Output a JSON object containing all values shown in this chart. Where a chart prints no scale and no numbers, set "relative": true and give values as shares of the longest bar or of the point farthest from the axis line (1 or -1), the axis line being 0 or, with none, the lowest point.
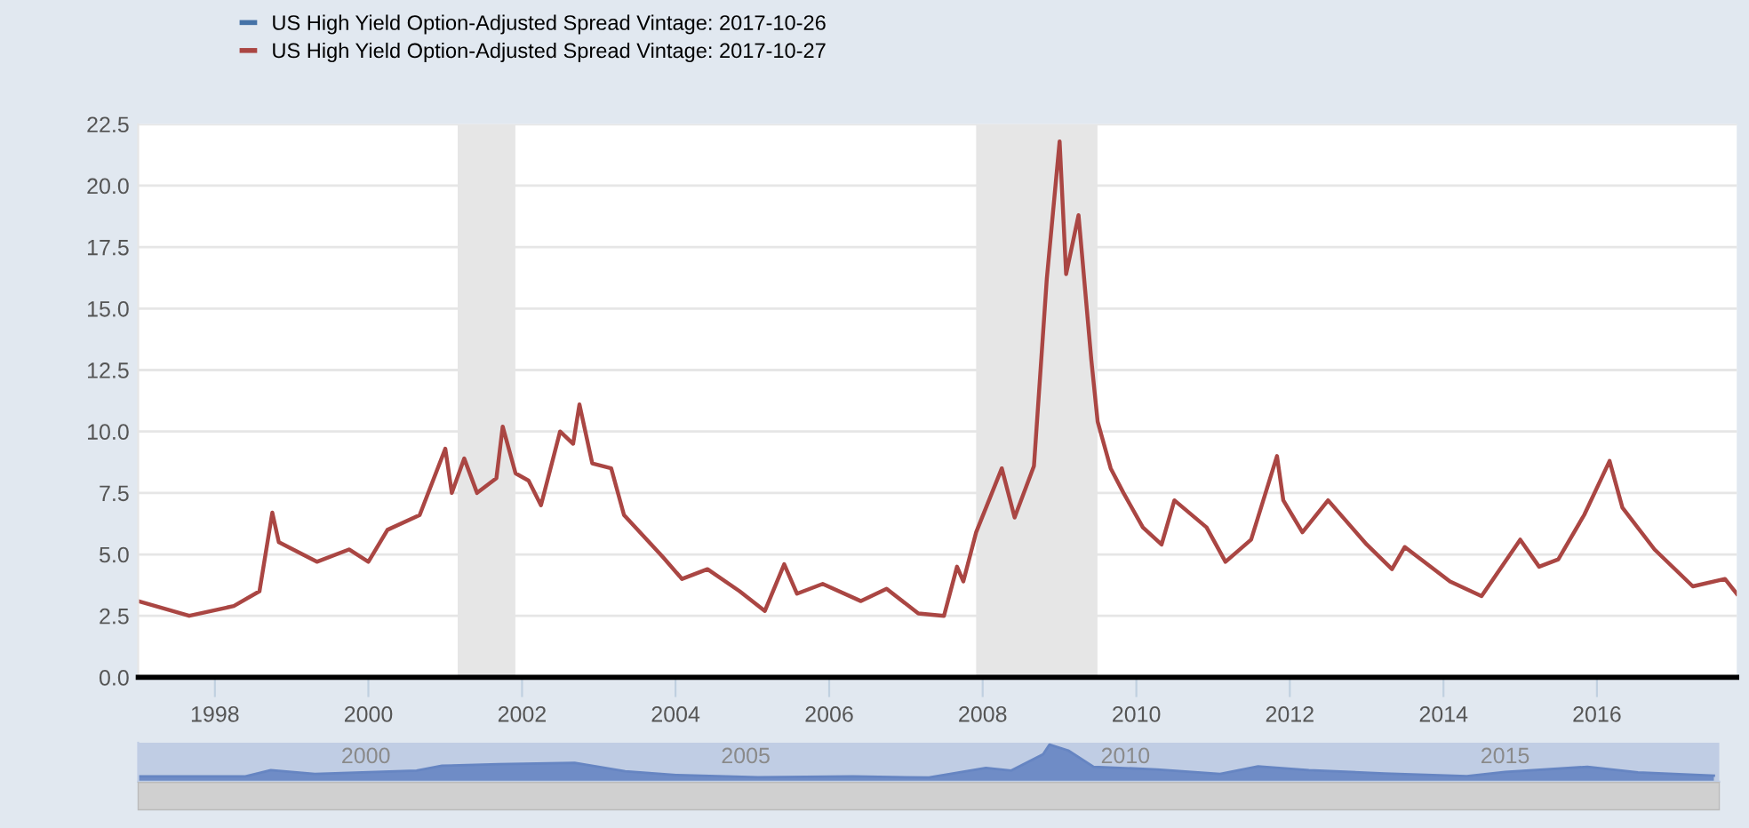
{
  "chart_data": [
    {
      "type": "line",
      "x": [
        "1997-01",
        "1997-09",
        "1998-04",
        "1998-08",
        "1998-10",
        "1998-11",
        "1999-05",
        "1999-10",
        "2000-01",
        "2000-04",
        "2000-09",
        "2001-01",
        "2001-02",
        "2001-04",
        "2001-06",
        "2001-09",
        "2001-10",
        "2001-12",
        "2002-02",
        "2002-04",
        "2002-07",
        "2002-09",
        "2002-10",
        "2002-12",
        "2003-03",
        "2003-05",
        "2003-11",
        "2004-02",
        "2004-06",
        "2004-11",
        "2005-03",
        "2005-06",
        "2005-08",
        "2005-12",
        "2006-06",
        "2006-10",
        "2007-03",
        "2007-07",
        "2007-09",
        "2007-10",
        "2007-12",
        "2008-04",
        "2008-06",
        "2008-09",
        "2008-11",
        "2009-01",
        "2009-02",
        "2009-04",
        "2009-06",
        "2009-07",
        "2009-09",
        "2009-11",
        "2010-02",
        "2010-05",
        "2010-07",
        "2010-12",
        "2011-03",
        "2011-07",
        "2011-11",
        "2011-12",
        "2012-03",
        "2012-07",
        "2013-01",
        "2013-05",
        "2013-07",
        "2014-02",
        "2014-07",
        "2015-01",
        "2015-04",
        "2015-07",
        "2015-11",
        "2016-03",
        "2016-05",
        "2016-10",
        "2017-04",
        "2017-09",
        "2017-10-27"
      ],
      "series": [
        {
          "name": "US High Yield Option-Adjusted Spread Vintage: 2017-10-26",
          "color": "#4572a7",
          "values": [
            null,
            null,
            null,
            null,
            null,
            null,
            null,
            null,
            null,
            null,
            null,
            null,
            null,
            null,
            null,
            null,
            null,
            null,
            null,
            null,
            null,
            null,
            null,
            null,
            null,
            null,
            null,
            null,
            null,
            null,
            null,
            null,
            null,
            null,
            null,
            null,
            null,
            null,
            null,
            null,
            null,
            null,
            null,
            null,
            null,
            null,
            null,
            null,
            null,
            null,
            null,
            null,
            null,
            null,
            null,
            null,
            null,
            null,
            null,
            null,
            null,
            null,
            null,
            null,
            null,
            null,
            null,
            null,
            null,
            null,
            null,
            null,
            null,
            null,
            null,
            null,
            null
          ]
        },
        {
          "name": "US High Yield Option-Adjusted Spread Vintage: 2017-10-27",
          "color": "#aa4643",
          "values": [
            3.1,
            2.5,
            2.9,
            3.5,
            6.7,
            5.5,
            4.7,
            5.2,
            4.7,
            6.0,
            6.6,
            9.3,
            7.5,
            8.9,
            7.5,
            8.1,
            10.2,
            8.3,
            8.0,
            7.0,
            10.0,
            9.5,
            11.1,
            8.7,
            8.5,
            6.6,
            4.9,
            4.0,
            4.4,
            3.5,
            2.7,
            4.6,
            3.4,
            3.8,
            3.1,
            3.6,
            2.6,
            2.5,
            4.5,
            3.9,
            5.9,
            8.5,
            6.5,
            8.6,
            16.2,
            21.8,
            16.4,
            18.8,
            12.9,
            10.4,
            8.5,
            7.5,
            6.1,
            5.4,
            7.2,
            6.1,
            4.7,
            5.6,
            9.0,
            7.2,
            5.9,
            7.2,
            5.4,
            4.4,
            5.3,
            3.9,
            3.3,
            5.6,
            4.5,
            4.8,
            6.6,
            8.8,
            6.9,
            5.2,
            3.7,
            4.0,
            3.4
          ]
        }
      ],
      "xlim": [
        "1997-01-01",
        "2017-10-27"
      ],
      "xticks": [
        {
          "value": "1998",
          "label": "1998"
        },
        {
          "value": "2000",
          "label": "2000"
        },
        {
          "value": "2002",
          "label": "2002"
        },
        {
          "value": "2004",
          "label": "2004"
        },
        {
          "value": "2006",
          "label": "2006"
        },
        {
          "value": "2008",
          "label": "2008"
        },
        {
          "value": "2010",
          "label": "2010"
        },
        {
          "value": "2012",
          "label": "2012"
        },
        {
          "value": "2014",
          "label": "2014"
        },
        {
          "value": "2016",
          "label": "2016"
        }
      ],
      "ylim": [
        0,
        22.5
      ],
      "yticks": [
        {
          "value": 0,
          "label": "0.0"
        },
        {
          "value": 2.5,
          "label": "2.5"
        },
        {
          "value": 5,
          "label": "5.0"
        },
        {
          "value": 7.5,
          "label": "7.5"
        },
        {
          "value": 10,
          "label": "10.0"
        },
        {
          "value": 12.5,
          "label": "12.5"
        },
        {
          "value": 15,
          "label": "15.0"
        },
        {
          "value": 17.5,
          "label": "17.5"
        },
        {
          "value": 20,
          "label": "20.0"
        },
        {
          "value": 22.5,
          "label": "22.5"
        }
      ],
      "bands": [
        {
          "axis": "x",
          "from": "2001-03-01",
          "to": "2001-11-30",
          "color": "#e6e6e6"
        },
        {
          "axis": "x",
          "from": "2007-12-01",
          "to": "2009-06-30",
          "color": "#e6e6e6"
        }
      ],
      "grid": "y",
      "legend": "top left"
    },
    {
      "type": "area",
      "relative": true,
      "x": [
        "1997-01",
        "1998-06",
        "1998-10",
        "1999-05",
        "2000-09",
        "2001-01",
        "2001-10",
        "2002-10",
        "2003-06",
        "2004-02",
        "2005-03",
        "2006-06",
        "2007-06",
        "2008-03",
        "2008-07",
        "2008-12",
        "2009-01",
        "2009-04",
        "2009-08",
        "2010-06",
        "2011-04",
        "2011-10",
        "2012-06",
        "2013-06",
        "2014-07",
        "2015-01",
        "2016-02",
        "2016-10",
        "2017-10"
      ],
      "series": [
        {
          "color": "#6685c2",
          "values": [
            0.14,
            0.14,
            0.31,
            0.21,
            0.3,
            0.43,
            0.47,
            0.51,
            0.28,
            0.18,
            0.12,
            0.14,
            0.11,
            0.37,
            0.3,
            0.74,
            1.0,
            0.84,
            0.4,
            0.33,
            0.21,
            0.41,
            0.31,
            0.22,
            0.15,
            0.26,
            0.4,
            0.25,
            0.16
          ]
        }
      ],
      "xlim": [
        "1997-01-01",
        "2017-10-27"
      ],
      "xticks": [
        {
          "value": "2000",
          "label": "2000"
        },
        {
          "value": "2005",
          "label": "2005"
        },
        {
          "value": "2010",
          "label": "2010"
        },
        {
          "value": "2015",
          "label": "2015"
        }
      ],
      "tick_labels": "x"
    }
  ]
}
